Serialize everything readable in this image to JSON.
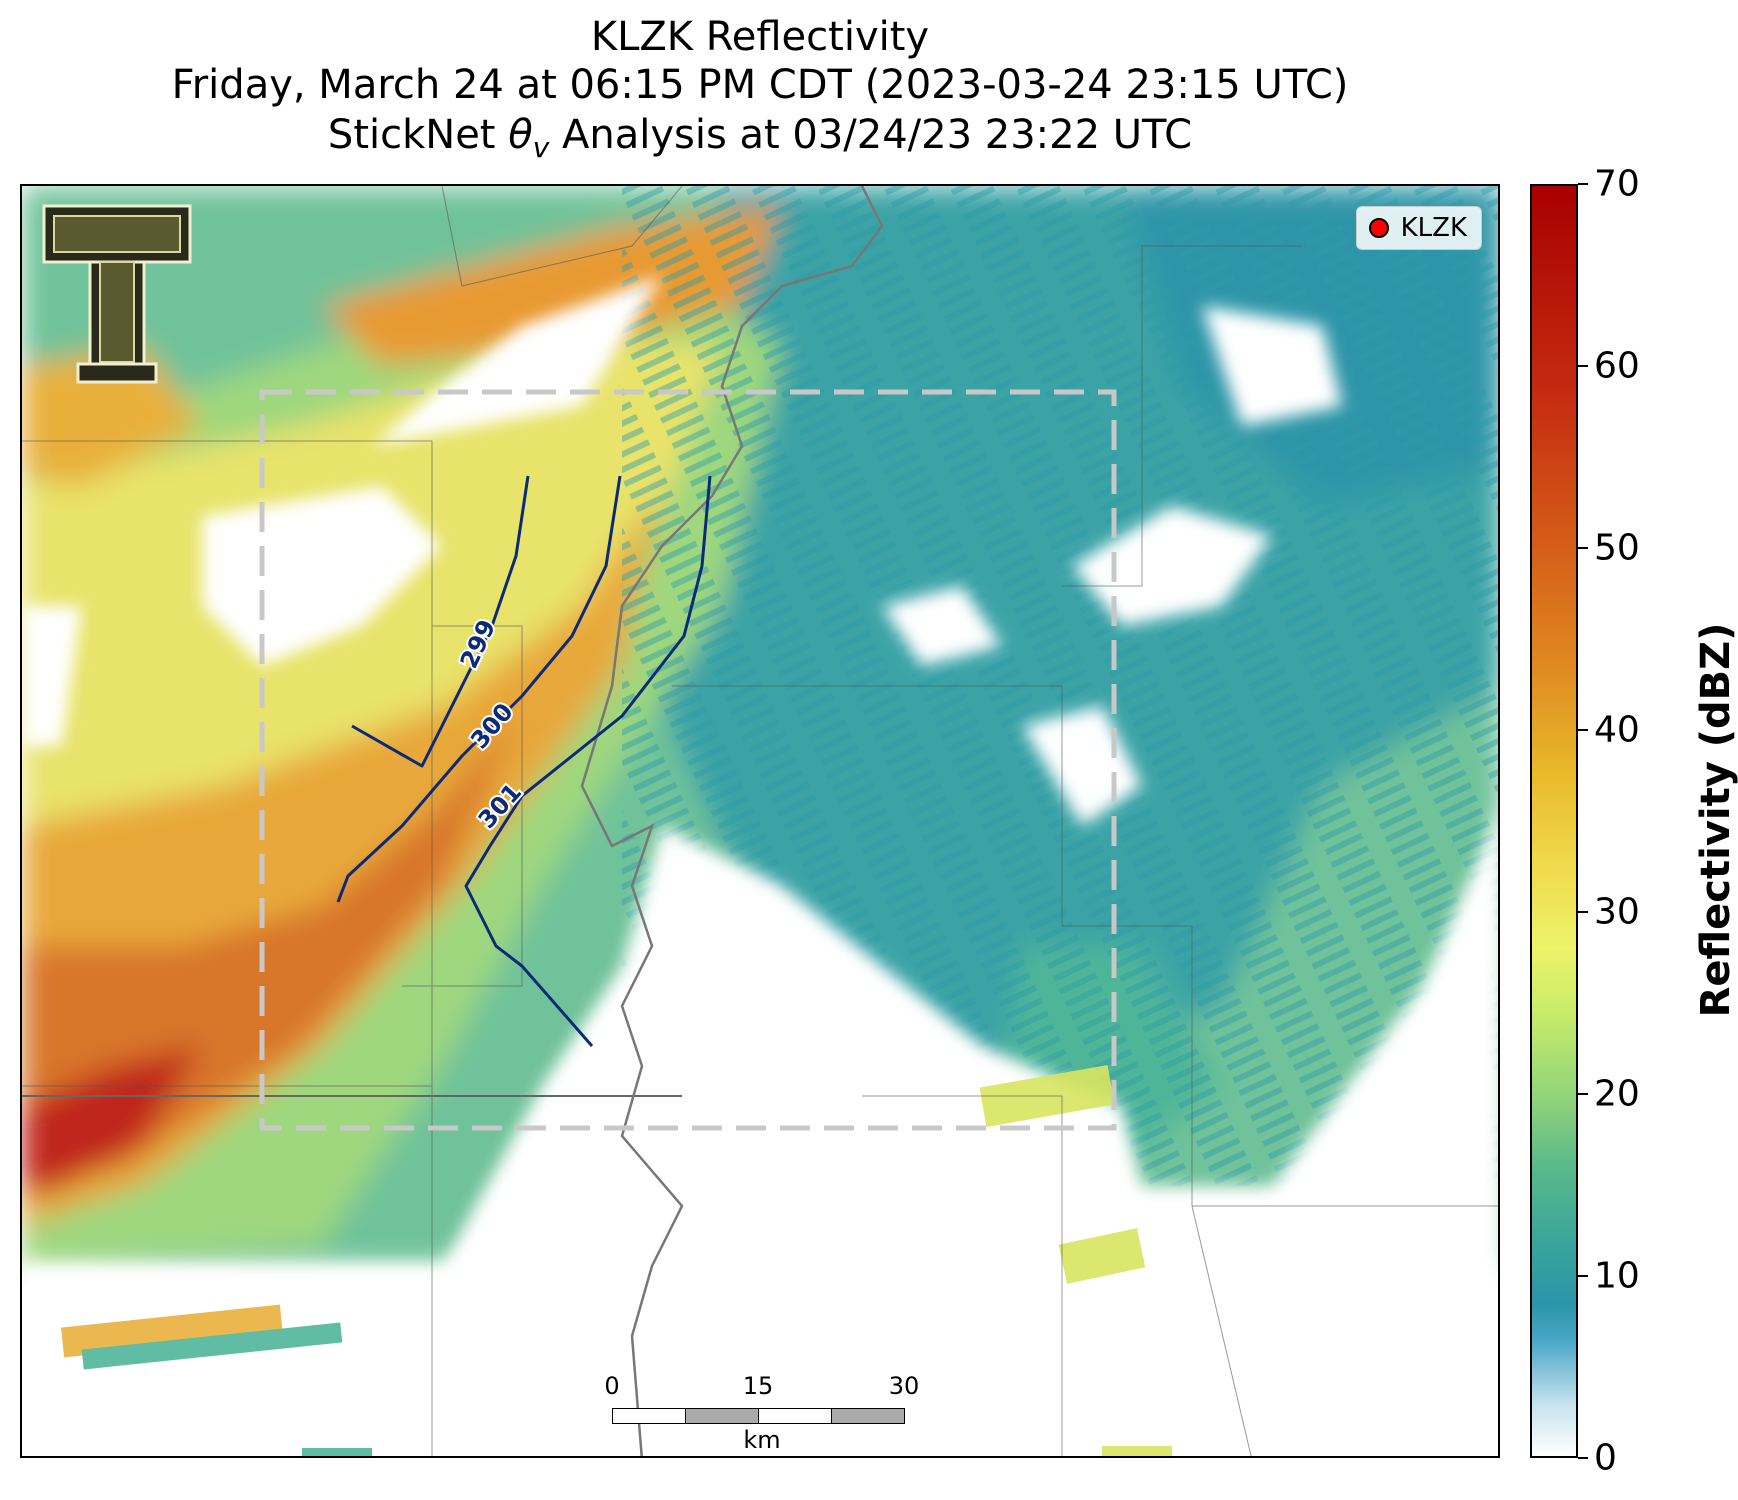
{
  "title": {
    "line1": "KLZK Reflectivity",
    "line2": "Friday, March 24 at 06:15 PM CDT (2023-03-24 23:15 UTC)",
    "line3": "StickNet θv Analysis at 03/24/23 23:22 UTC"
  },
  "legend": {
    "label": "KLZK",
    "marker_color": "#ff0000"
  },
  "contours": [
    {
      "label": "299",
      "color": "#0b2a78"
    },
    {
      "label": "300",
      "color": "#0b2a78"
    },
    {
      "label": "301",
      "color": "#0b2a78"
    }
  ],
  "scale_bar": {
    "ticks": [
      "0",
      "15",
      "30"
    ],
    "unit": "km"
  },
  "colorbar": {
    "title": "Reflectivity (dBZ)",
    "ticks": [
      "0",
      "10",
      "20",
      "30",
      "40",
      "50",
      "60",
      "70"
    ],
    "min": 0,
    "max": 70
  },
  "logo": {
    "name": "texas-tech-double-t-logo"
  }
}
